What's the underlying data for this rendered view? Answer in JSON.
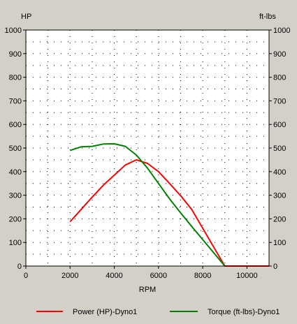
{
  "colors": {
    "background": "#d4d0c8",
    "plot_background": "#ffffff",
    "power": "#ff0000",
    "torque": "#008000"
  },
  "chart_data": {
    "type": "line",
    "title": "",
    "xlabel": "RPM",
    "ylabel_left": "HP",
    "ylabel_right": "ft-lbs",
    "xlim": [
      0,
      11000
    ],
    "ylim": [
      0,
      1000
    ],
    "ylim_right": [
      0,
      1000
    ],
    "x_ticks": [
      0,
      2000,
      4000,
      6000,
      8000,
      10000
    ],
    "y_ticks": [
      0,
      100,
      200,
      300,
      400,
      500,
      600,
      700,
      800,
      900,
      1000
    ],
    "grid": true,
    "legend_position": "bottom",
    "series": [
      {
        "name": "Power (HP)-Dyno1",
        "color": "#ff0000",
        "axis": "left",
        "points": [
          [
            2000,
            188
          ],
          [
            2500,
            240
          ],
          [
            3000,
            292
          ],
          [
            3500,
            342
          ],
          [
            4000,
            385
          ],
          [
            4500,
            428
          ],
          [
            5000,
            450
          ],
          [
            5500,
            435
          ],
          [
            6000,
            400
          ],
          [
            6500,
            350
          ],
          [
            7000,
            298
          ],
          [
            7500,
            240
          ],
          [
            8000,
            160
          ],
          [
            8500,
            80
          ],
          [
            9000,
            0
          ],
          [
            11000,
            0
          ]
        ]
      },
      {
        "name": "Torque (ft-lbs)-Dyno1",
        "color": "#008000",
        "axis": "right",
        "points": [
          [
            2000,
            490
          ],
          [
            2500,
            505
          ],
          [
            3000,
            507
          ],
          [
            3500,
            517
          ],
          [
            4000,
            518
          ],
          [
            4500,
            507
          ],
          [
            5000,
            470
          ],
          [
            5500,
            415
          ],
          [
            6000,
            350
          ],
          [
            6500,
            285
          ],
          [
            7000,
            225
          ],
          [
            7500,
            168
          ],
          [
            8000,
            112
          ],
          [
            8500,
            56
          ],
          [
            9000,
            0
          ]
        ]
      }
    ]
  }
}
